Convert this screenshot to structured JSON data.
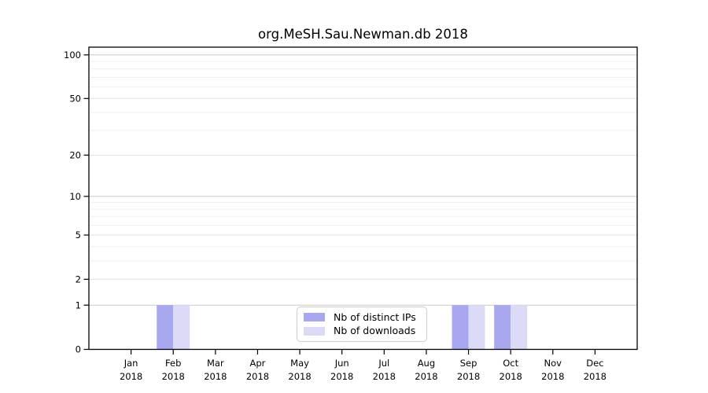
{
  "title": "org.MeSH.Sau.Newman.db 2018",
  "legend": {
    "items": [
      {
        "label": "Nb of distinct IPs",
        "color": "#a8a8f0"
      },
      {
        "label": "Nb of downloads",
        "color": "#dbdbf8"
      }
    ]
  },
  "chart_data": {
    "type": "bar",
    "title": "org.MeSH.Sau.Newman.db 2018",
    "categories": [
      {
        "month": "Jan",
        "year": "2018"
      },
      {
        "month": "Feb",
        "year": "2018"
      },
      {
        "month": "Mar",
        "year": "2018"
      },
      {
        "month": "Apr",
        "year": "2018"
      },
      {
        "month": "May",
        "year": "2018"
      },
      {
        "month": "Jun",
        "year": "2018"
      },
      {
        "month": "Jul",
        "year": "2018"
      },
      {
        "month": "Aug",
        "year": "2018"
      },
      {
        "month": "Sep",
        "year": "2018"
      },
      {
        "month": "Oct",
        "year": "2018"
      },
      {
        "month": "Nov",
        "year": "2018"
      },
      {
        "month": "Dec",
        "year": "2018"
      }
    ],
    "series": [
      {
        "name": "Nb of distinct IPs",
        "color": "#a8a8f0",
        "values": [
          0,
          1,
          0,
          0,
          0,
          0,
          0,
          0,
          1,
          1,
          0,
          0
        ]
      },
      {
        "name": "Nb of downloads",
        "color": "#dbdbf8",
        "values": [
          0,
          1,
          0,
          0,
          0,
          0,
          0,
          0,
          1,
          1,
          0,
          0
        ]
      }
    ],
    "yscale": "log1p",
    "yticks": [
      0,
      1,
      2,
      5,
      10,
      20,
      50,
      100
    ],
    "minor_gridline_values": [
      3,
      4,
      6,
      7,
      8,
      9,
      30,
      40,
      60,
      70,
      80,
      90
    ],
    "emphasized_gridline_values": [
      1,
      10,
      100
    ],
    "ylim": [
      0,
      113
    ],
    "grid": true,
    "legend_position": "lower center",
    "colors": {
      "axis": "#000000",
      "grid_emphasized": "#c9c9c9",
      "grid_major": "#e2e2e2",
      "grid_minor": "#efefef"
    }
  }
}
